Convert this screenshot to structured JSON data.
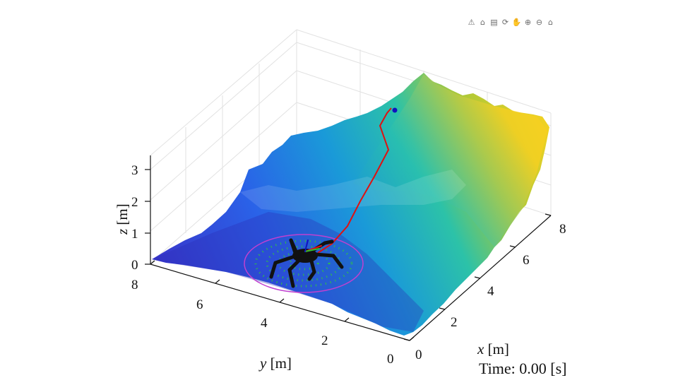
{
  "toolbar": {
    "buttons": [
      {
        "name": "brush-icon",
        "glyph": "⚠"
      },
      {
        "name": "datatip-icon",
        "glyph": "⌂"
      },
      {
        "name": "legend-icon",
        "glyph": "▤"
      },
      {
        "name": "rotate-icon",
        "glyph": "⟳"
      },
      {
        "name": "pan-icon",
        "glyph": "✋"
      },
      {
        "name": "zoom-in-icon",
        "glyph": "⊕"
      },
      {
        "name": "zoom-out-icon",
        "glyph": "⊖"
      },
      {
        "name": "home-icon",
        "glyph": "⌂"
      }
    ]
  },
  "axes": {
    "x_label_var": "x",
    "x_label_unit": " [m]",
    "y_label_var": "y",
    "y_label_unit": " [m]",
    "z_label_var": "z",
    "z_label_unit": " [m]",
    "x_ticks": [
      "0",
      "2",
      "4",
      "6",
      "8"
    ],
    "y_ticks": [
      "0",
      "2",
      "4",
      "6",
      "8"
    ],
    "z_ticks": [
      "0",
      "1",
      "2",
      "3"
    ]
  },
  "time_label": "Time: 0.00 [s]",
  "colors": {
    "terrain_low": "#3b2fd0",
    "terrain_mid": "#17b3c6",
    "terrain_high": "#f7d21e",
    "path": "#e01010",
    "goal_marker": "#1010c0",
    "foothold_ring": "#c040d0",
    "foothold_dots": "#30d030",
    "robot": "#111111"
  }
}
